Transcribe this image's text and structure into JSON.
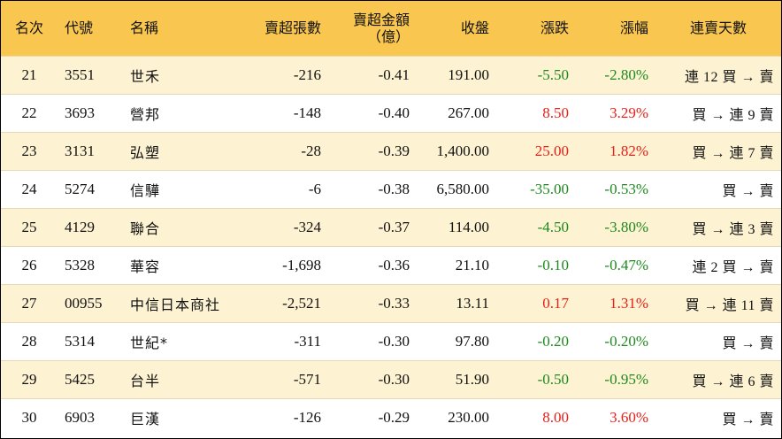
{
  "headers": {
    "rank": "名次",
    "code": "代號",
    "name": "名稱",
    "sell_lots": "賣超張數",
    "sell_amount": "賣超金額",
    "sell_amount_unit": "（億）",
    "close": "收盤",
    "change": "漲跌",
    "change_pct": "漲幅",
    "streak": "連賣天數"
  },
  "rows": [
    {
      "rank": "21",
      "code": "3551",
      "name": "世禾",
      "sell_lots": "-216",
      "sell_amount": "-0.41",
      "close": "191.00",
      "change": "-5.50",
      "change_pct": "-2.80%",
      "streak": "連 12 買 → 賣",
      "direction": "down"
    },
    {
      "rank": "22",
      "code": "3693",
      "name": "營邦",
      "sell_lots": "-148",
      "sell_amount": "-0.40",
      "close": "267.00",
      "change": "8.50",
      "change_pct": "3.29%",
      "streak": "買 → 連 9 賣",
      "direction": "up"
    },
    {
      "rank": "23",
      "code": "3131",
      "name": "弘塑",
      "sell_lots": "-28",
      "sell_amount": "-0.39",
      "close": "1,400.00",
      "change": "25.00",
      "change_pct": "1.82%",
      "streak": "買 → 連 7 賣",
      "direction": "up"
    },
    {
      "rank": "24",
      "code": "5274",
      "name": "信驊",
      "sell_lots": "-6",
      "sell_amount": "-0.38",
      "close": "6,580.00",
      "change": "-35.00",
      "change_pct": "-0.53%",
      "streak": "買 → 賣",
      "direction": "down"
    },
    {
      "rank": "25",
      "code": "4129",
      "name": "聯合",
      "sell_lots": "-324",
      "sell_amount": "-0.37",
      "close": "114.00",
      "change": "-4.50",
      "change_pct": "-3.80%",
      "streak": "買 → 連 3 賣",
      "direction": "down"
    },
    {
      "rank": "26",
      "code": "5328",
      "name": "華容",
      "sell_lots": "-1,698",
      "sell_amount": "-0.36",
      "close": "21.10",
      "change": "-0.10",
      "change_pct": "-0.47%",
      "streak": "連 2 買 → 賣",
      "direction": "down"
    },
    {
      "rank": "27",
      "code": "00955",
      "name": "中信日本商社",
      "sell_lots": "-2,521",
      "sell_amount": "-0.33",
      "close": "13.11",
      "change": "0.17",
      "change_pct": "1.31%",
      "streak": "買 → 連 11 賣",
      "direction": "up"
    },
    {
      "rank": "28",
      "code": "5314",
      "name": "世紀*",
      "sell_lots": "-311",
      "sell_amount": "-0.30",
      "close": "97.80",
      "change": "-0.20",
      "change_pct": "-0.20%",
      "streak": "買 → 賣",
      "direction": "down"
    },
    {
      "rank": "29",
      "code": "5425",
      "name": "台半",
      "sell_lots": "-571",
      "sell_amount": "-0.30",
      "close": "51.90",
      "change": "-0.50",
      "change_pct": "-0.95%",
      "streak": "買 → 連 6 賣",
      "direction": "down"
    },
    {
      "rank": "30",
      "code": "6903",
      "name": "巨漢",
      "sell_lots": "-126",
      "sell_amount": "-0.29",
      "close": "230.00",
      "change": "8.00",
      "change_pct": "3.60%",
      "streak": "買 → 賣",
      "direction": "up"
    }
  ],
  "colors": {
    "header_bg": "#f9c650",
    "stripe_bg": "#fdf2d2",
    "up": "#e8201a",
    "down": "#1e8a1e"
  }
}
